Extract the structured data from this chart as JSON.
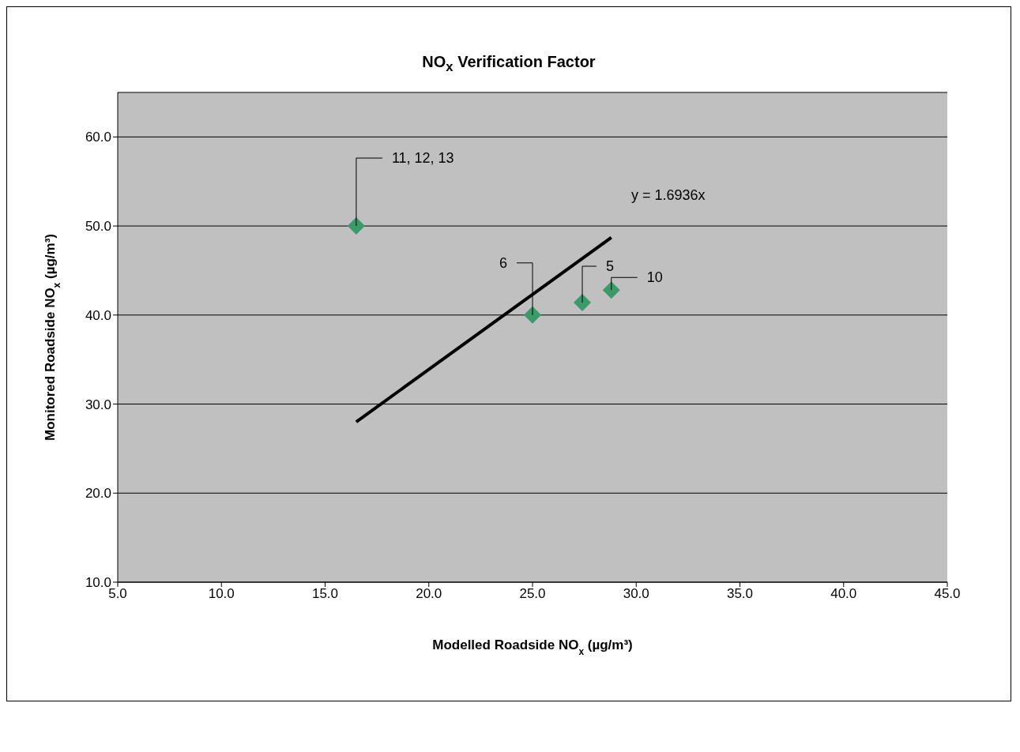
{
  "chart_data": {
    "type": "scatter",
    "title": "NO$_{x}$ Verification Factor",
    "xlabel": "Modelled Roadside NO$_{x}$ (µg/m³)",
    "ylabel": "Monitored Roadside NO$_{x}$ (µg/m³)",
    "xlim": [
      5,
      45
    ],
    "xticks": [
      {
        "value": 5,
        "label": "5.0"
      },
      {
        "value": 10,
        "label": "10.0"
      },
      {
        "value": 15,
        "label": "15.0"
      },
      {
        "value": 20,
        "label": "20.0"
      },
      {
        "value": 25,
        "label": "25.0"
      },
      {
        "value": 30,
        "label": "30.0"
      },
      {
        "value": 35,
        "label": "35.0"
      },
      {
        "value": 40,
        "label": "40.0"
      },
      {
        "value": 45,
        "label": "45.0"
      }
    ],
    "ylim": [
      10,
      65
    ],
    "yticks": [
      {
        "value": 10,
        "label": "10.0"
      },
      {
        "value": 20,
        "label": "20.0"
      },
      {
        "value": 30,
        "label": "30.0"
      },
      {
        "value": 40,
        "label": "40.0"
      },
      {
        "value": 50,
        "label": "50.0"
      },
      {
        "value": 60,
        "label": "60.0"
      }
    ],
    "grid": "y",
    "legend": false,
    "marker": "diamond",
    "series": [
      {
        "color": "#3a9a6a",
        "x": [
          16.5,
          25.0,
          27.4,
          28.8
        ],
        "values": [
          50.0,
          40.0,
          41.4,
          42.8
        ]
      },
      {
        "type": "line",
        "color": "#000000",
        "marker": "none",
        "x": [
          16.5,
          28.8
        ],
        "values": [
          28.0,
          48.7
        ]
      }
    ],
    "annotations": [
      {
        "text": "11, 12, 13",
        "x": 16.5,
        "y": 50.0
      },
      {
        "text": "6",
        "x": 25.0,
        "y": 40.0
      },
      {
        "text": "5",
        "x": 27.4,
        "y": 41.4
      },
      {
        "text": "10",
        "x": 28.8,
        "y": 42.8
      },
      "y = 1.6936x"
    ]
  }
}
